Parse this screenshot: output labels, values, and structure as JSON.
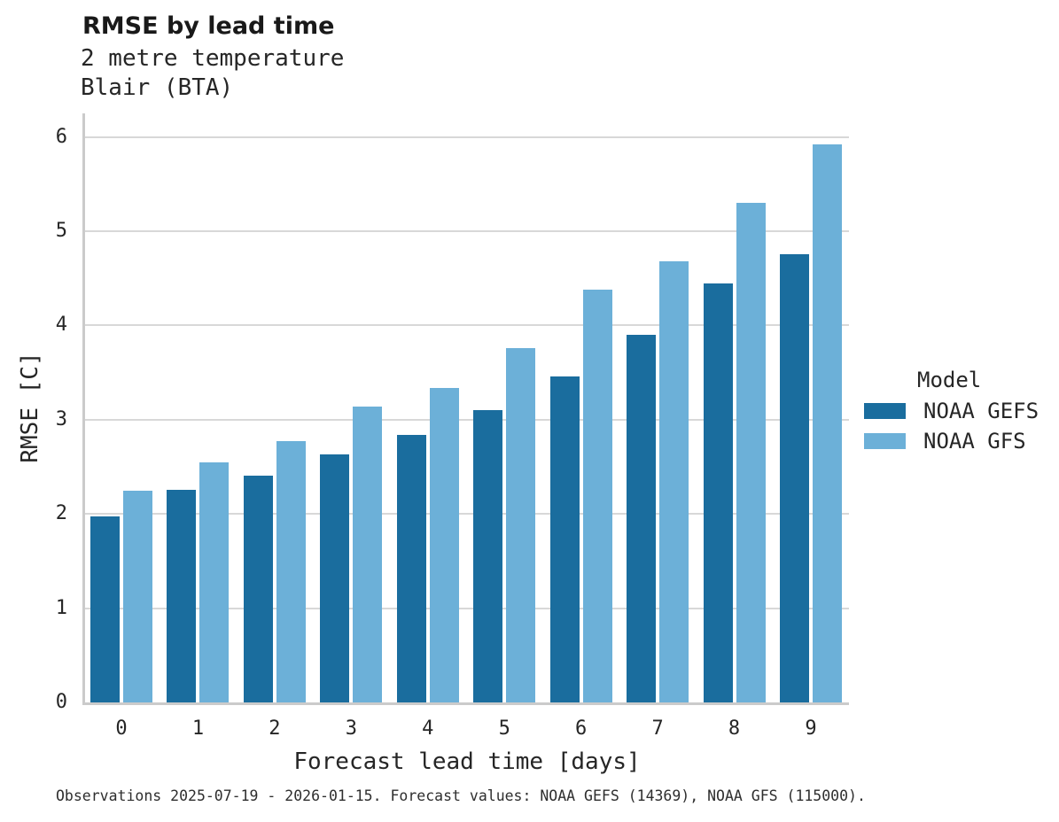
{
  "chart_data": {
    "type": "bar",
    "title": "RMSE by lead time",
    "subtitle_lines": [
      "2 metre temperature",
      "Blair (BTA)"
    ],
    "xlabel": "Forecast lead time [days]",
    "ylabel": "RMSE [C]",
    "categories": [
      "0",
      "1",
      "2",
      "3",
      "4",
      "5",
      "6",
      "7",
      "8",
      "9"
    ],
    "series": [
      {
        "name": "NOAA GEFS",
        "color": "#1a6d9e",
        "values": [
          1.97,
          2.26,
          2.41,
          2.63,
          2.84,
          3.1,
          3.46,
          3.9,
          4.45,
          4.76
        ]
      },
      {
        "name": "NOAA GFS",
        "color": "#6cb0d8",
        "values": [
          2.25,
          2.55,
          2.77,
          3.14,
          3.34,
          3.76,
          4.38,
          4.68,
          5.3,
          5.92
        ]
      }
    ],
    "ylim": [
      0,
      6.25
    ],
    "yticks": [
      0,
      1,
      2,
      3,
      4,
      5,
      6
    ],
    "legend_title": "Model",
    "legend_position": "right",
    "grid": true,
    "grid_color": "#d8d8d8",
    "spine_color": "#cbcbcb",
    "background": "#ffffff"
  },
  "footer": {
    "caption": "Observations 2025-07-19 - 2026-01-15. Forecast values: NOAA GEFS (14369), NOAA GFS (115000)."
  }
}
